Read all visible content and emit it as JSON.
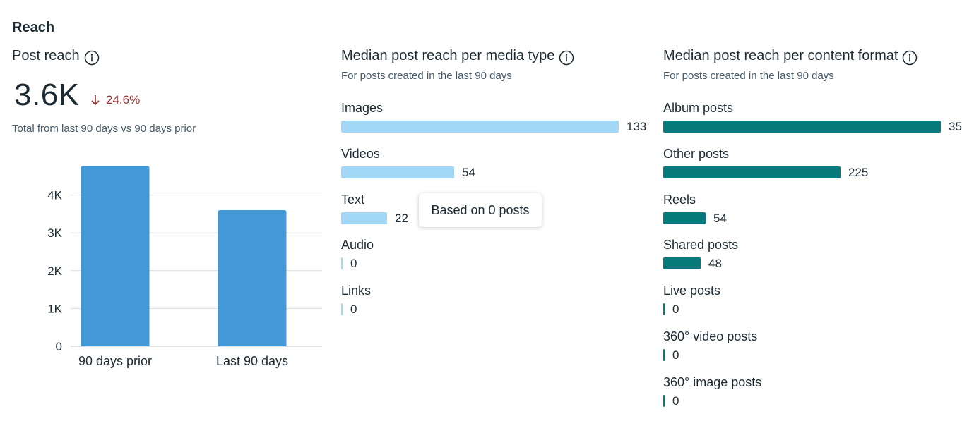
{
  "section": {
    "title": "Reach"
  },
  "post_reach": {
    "title": "Post reach",
    "value": "3.6K",
    "delta": "24.6%",
    "note": "Total from last 90 days vs 90 days prior"
  },
  "media_type": {
    "title": "Median post reach per media type",
    "subtitle": "For posts created in the last 90 days",
    "color": "#a2d8f5",
    "items": [
      {
        "label": "Images",
        "value": 133
      },
      {
        "label": "Videos",
        "value": 54
      },
      {
        "label": "Text",
        "value": 22
      },
      {
        "label": "Audio",
        "value": 0
      },
      {
        "label": "Links",
        "value": 0
      }
    ]
  },
  "content_format": {
    "title": "Median post reach per content format",
    "subtitle": "For posts created in the last 90 days",
    "color": "#087a7c",
    "items": [
      {
        "label": "Album posts",
        "value": 35
      },
      {
        "label": "Other posts",
        "value": 225
      },
      {
        "label": "Reels",
        "value": 54
      },
      {
        "label": "Shared posts",
        "value": 48
      },
      {
        "label": "Live posts",
        "value": 0
      },
      {
        "label": "360° video posts",
        "value": 0
      },
      {
        "label": "360° image posts",
        "value": 0
      }
    ]
  },
  "tooltip": {
    "text": "Based on 0 posts"
  },
  "chart_data": {
    "type": "bar",
    "categories": [
      "90 days prior",
      "Last 90 days"
    ],
    "values": [
      4770,
      3600
    ],
    "ylim": [
      0,
      5000
    ],
    "yticks": [
      "0",
      "1K",
      "2K",
      "3K",
      "4K"
    ],
    "ytick_values": [
      0,
      1000,
      2000,
      3000,
      4000
    ],
    "color": "#4299d6",
    "grid": true
  }
}
